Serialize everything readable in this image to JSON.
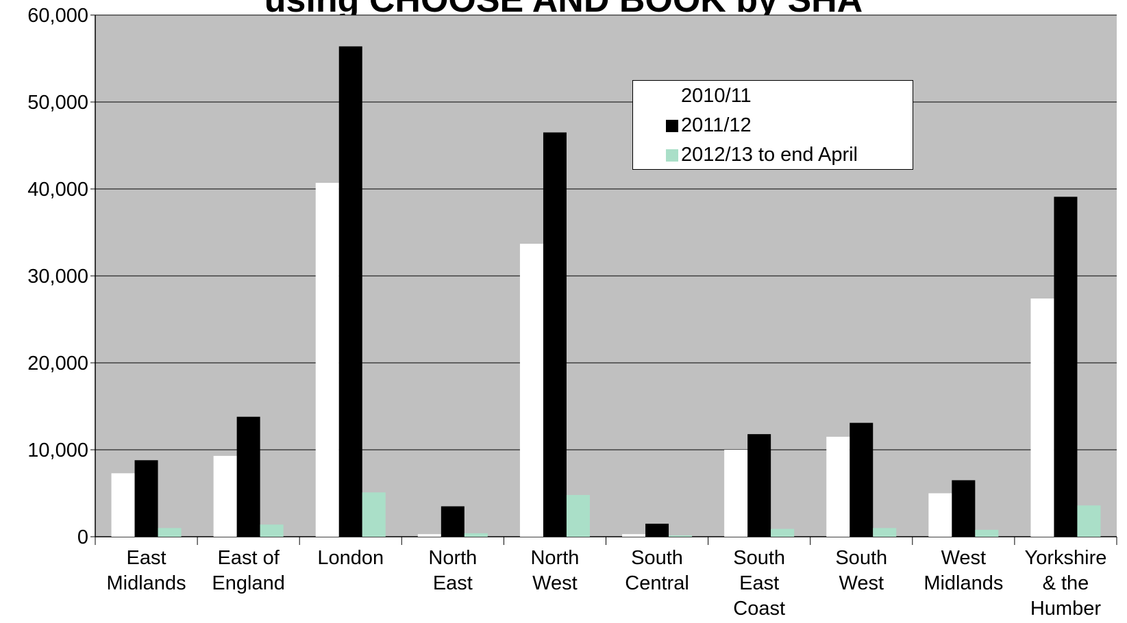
{
  "chart_data": {
    "type": "bar",
    "title": "using CHOOSE AND BOOK by SHA",
    "xlabel": "",
    "ylabel": "",
    "ylim": [
      0,
      60000
    ],
    "yticks": [
      "0",
      "10,000",
      "20,000",
      "30,000",
      "40,000",
      "50,000",
      "60,000"
    ],
    "categories": [
      [
        "East",
        "Midlands"
      ],
      [
        "East of",
        "England"
      ],
      [
        "London"
      ],
      [
        "North",
        "East"
      ],
      [
        "North",
        "West"
      ],
      [
        "South",
        "Central"
      ],
      [
        "South",
        "East",
        "Coast"
      ],
      [
        "South",
        "West"
      ],
      [
        "West",
        "Midlands"
      ],
      [
        "Yorkshire",
        "& the",
        "Humber"
      ]
    ],
    "series": [
      {
        "name": "2010/11",
        "color": "#ffffff",
        "values": [
          7300,
          9300,
          40700,
          300,
          33700,
          300,
          10000,
          11500,
          5000,
          27400
        ]
      },
      {
        "name": "2011/12",
        "color": "#000000",
        "values": [
          8800,
          13800,
          56400,
          3500,
          46500,
          1500,
          11800,
          13100,
          6500,
          39100
        ]
      },
      {
        "name": "2012/13 to end  April",
        "color": "#aadfc8",
        "values": [
          1000,
          1400,
          5100,
          400,
          4800,
          150,
          900,
          1000,
          800,
          3600
        ]
      }
    ],
    "grid": true,
    "legend_position": "top-right",
    "plot_background": "#c0c0c0"
  }
}
